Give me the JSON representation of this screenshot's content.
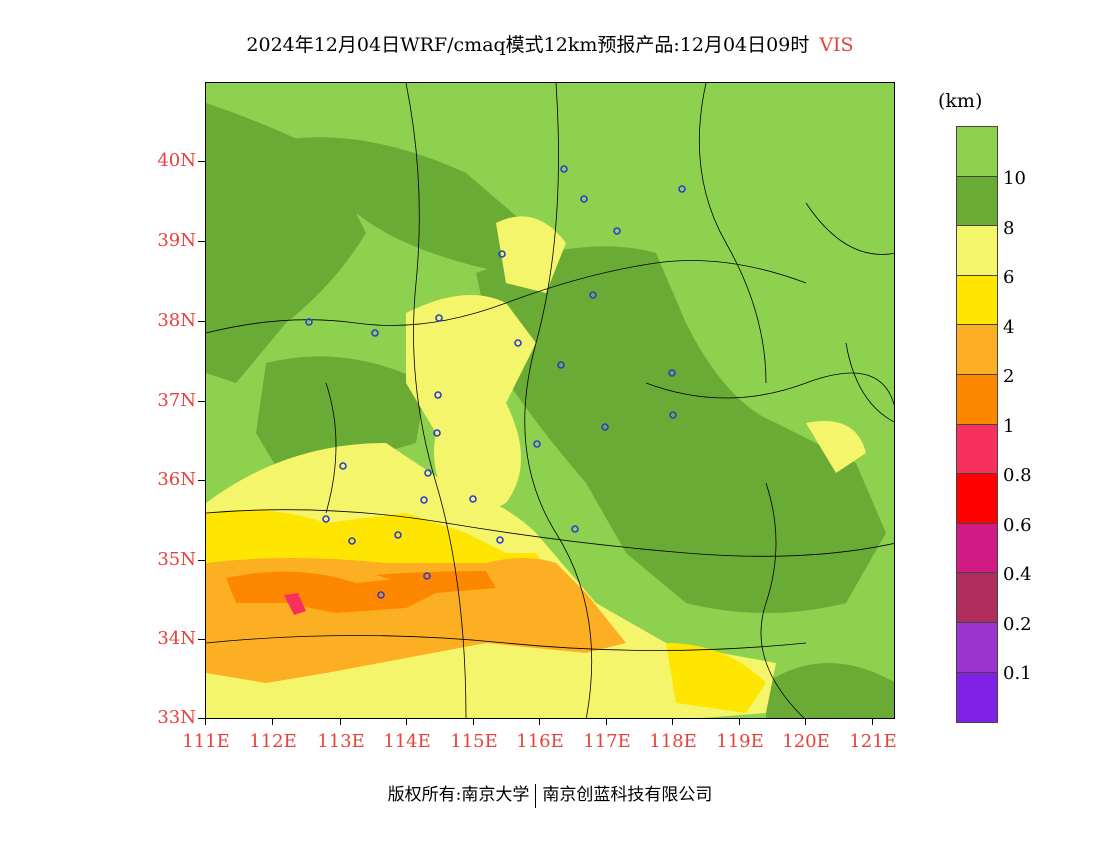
{
  "title": {
    "main": "2024年12月04日WRF/cmaq模式12km预报产品:12月04日09时",
    "variable": "VIS"
  },
  "axes": {
    "lat_labels": [
      "40N",
      "39N",
      "38N",
      "37N",
      "36N",
      "35N",
      "34N",
      "33N"
    ],
    "lon_labels": [
      "111E",
      "112E",
      "113E",
      "114E",
      "115E",
      "116E",
      "117E",
      "118E",
      "119E",
      "120E",
      "121E"
    ]
  },
  "legend": {
    "unit": "(km)",
    "colors": [
      "#8ed14f",
      "#6aab35",
      "#f5f56b",
      "#fee600",
      "#fdaf23",
      "#fe8700",
      "#f8305e",
      "#fe0000",
      "#d11a84",
      "#b02c5c",
      "#9b33ce",
      "#8121e8"
    ],
    "labels": [
      "10",
      "8",
      "6",
      "4",
      "2",
      "1",
      "0.8",
      "0.6",
      "0.4",
      "0.2",
      "0.1"
    ]
  },
  "footer": {
    "copyright": "版权所有:南京大学",
    "company": "南京创蓝科技有限公司"
  }
}
